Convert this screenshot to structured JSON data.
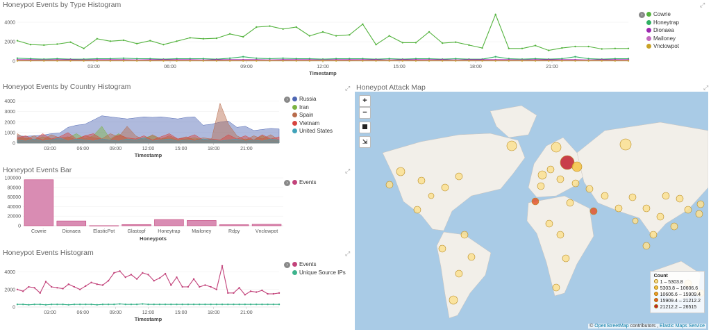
{
  "panels": {
    "type_hist": {
      "title": "Honeypot Events by Type Histogram"
    },
    "country_hist": {
      "title": "Honeypot Events by Country Histogram"
    },
    "bar": {
      "title": "Honeypot Events Bar"
    },
    "events_hist": {
      "title": "Honeypot Events Histogram"
    },
    "map": {
      "title": "Honeypot Attack Map"
    }
  },
  "colors": {
    "cowrie": "#54b33e",
    "honeytrap": "#2fb063",
    "dionaea": "#9c27b0",
    "mailoney": "#c36bbf",
    "vnclowpot": "#c9a227",
    "russia": "#4e66b3",
    "iran": "#7cb342",
    "spain": "#b86b4b",
    "vietnam": "#d7443f",
    "us": "#3fa2b9",
    "events": "#c2427a",
    "unique_ips": "#3db38c",
    "bar_fill": "#d98cb3",
    "bar_stroke": "#c2427a"
  },
  "time_ticks": [
    "03:00",
    "06:00",
    "09:00",
    "12:00",
    "15:00",
    "18:00",
    "21:00"
  ],
  "chart_data": [
    {
      "type": "line",
      "title": "Honeypot Events by Type Histogram",
      "xlabel": "Timestamp",
      "ylim": [
        0,
        5000
      ],
      "yticks": [
        "4000",
        "2000",
        "0"
      ],
      "series": [
        {
          "name": "Cowrie",
          "color": "#54b33e",
          "values": [
            2100,
            1700,
            1650,
            1750,
            1950,
            1300,
            2300,
            2050,
            2150,
            1800,
            2100,
            1700,
            2050,
            2400,
            2300,
            2350,
            2800,
            2500,
            3500,
            3600,
            3300,
            3500,
            2600,
            3000,
            2600,
            2700,
            3800,
            1700,
            2600,
            1900,
            1900,
            3000,
            1850,
            1950,
            1650,
            1350,
            4800,
            1300,
            1300,
            1600,
            1100,
            1350,
            1500,
            1500,
            1250,
            1300,
            1300
          ]
        },
        {
          "name": "Honeytrap",
          "color": "#2fb063",
          "values": [
            300,
            250,
            200,
            250,
            200,
            200,
            250,
            250,
            300,
            250,
            250,
            200,
            250,
            250,
            250,
            200,
            300,
            450,
            300,
            250,
            300,
            250,
            250,
            200,
            250,
            250,
            250,
            200,
            250,
            200,
            250,
            250,
            200,
            250,
            200,
            200,
            450,
            250,
            200,
            250,
            200,
            250,
            450,
            250,
            200,
            250,
            250
          ]
        },
        {
          "name": "Dionaea",
          "color": "#9c27b0",
          "values": [
            150,
            150,
            120,
            150,
            150,
            120,
            150,
            150,
            150,
            120,
            150,
            150,
            150,
            150,
            120,
            150,
            150,
            150,
            150,
            120,
            150,
            150,
            150,
            120,
            150,
            150,
            150,
            150,
            120,
            150,
            150,
            150,
            150,
            120,
            150,
            150,
            150,
            150,
            120,
            150,
            150,
            150,
            150,
            120,
            150,
            150,
            150
          ]
        },
        {
          "name": "Mailoney",
          "color": "#c36bbf",
          "values": [
            100,
            80,
            90,
            100,
            90,
            80,
            100,
            90,
            100,
            90,
            80,
            100,
            90,
            100,
            90,
            80,
            100,
            90,
            100,
            90,
            80,
            100,
            90,
            100,
            90,
            80,
            100,
            90,
            100,
            90,
            80,
            100,
            90,
            100,
            90,
            80,
            100,
            90,
            100,
            90,
            80,
            100,
            90,
            100,
            90,
            80,
            100
          ]
        },
        {
          "name": "Vnclowpot",
          "color": "#c9a227",
          "values": [
            30,
            30,
            30,
            30,
            30,
            30,
            30,
            30,
            30,
            30,
            30,
            30,
            30,
            30,
            30,
            30,
            30,
            30,
            30,
            30,
            30,
            30,
            30,
            30,
            30,
            30,
            30,
            30,
            30,
            30,
            30,
            30,
            30,
            30,
            30,
            30,
            30,
            30,
            30,
            30,
            30,
            30,
            30,
            30,
            30,
            30,
            30
          ]
        }
      ]
    },
    {
      "type": "area",
      "title": "Honeypot Events by Country Histogram",
      "xlabel": "Timestamp",
      "ylim": [
        0,
        4500
      ],
      "yticks": [
        "4000",
        "3000",
        "2000",
        "1000",
        "0"
      ],
      "series": [
        {
          "name": "Russia",
          "color": "#4e66b3",
          "values": [
            700,
            650,
            700,
            750,
            900,
            950,
            1500,
            1700,
            1800,
            2200,
            2600,
            2500,
            2400,
            2300,
            2400,
            2500,
            2450,
            2500,
            2400,
            2300,
            2450,
            2500,
            1700,
            1800,
            2000,
            2100,
            1500,
            1600,
            1200,
            1300,
            1400,
            1350
          ]
        },
        {
          "name": "Iran",
          "color": "#7cb342",
          "values": [
            400,
            500,
            300,
            600,
            400,
            300,
            500,
            900,
            400,
            700,
            1600,
            400,
            900,
            400,
            300,
            500,
            700,
            400,
            500,
            300,
            400,
            500,
            300,
            300,
            200,
            300,
            200,
            400,
            300,
            700,
            300,
            200
          ]
        },
        {
          "name": "Spain",
          "color": "#b86b4b",
          "values": [
            900,
            400,
            700,
            300,
            800,
            500,
            600,
            300,
            700,
            500,
            400,
            900,
            600,
            1600,
            700,
            300,
            800,
            400,
            700,
            400,
            600,
            300,
            500,
            400,
            3800,
            1800,
            700,
            300,
            700,
            400,
            800,
            300
          ]
        },
        {
          "name": "Vietnam",
          "color": "#d7443f",
          "values": [
            500,
            700,
            300,
            900,
            400,
            600,
            1000,
            400,
            700,
            900,
            400,
            300,
            800,
            500,
            400,
            700,
            300,
            600,
            900,
            400,
            500,
            800,
            300,
            400,
            300,
            800,
            400,
            700,
            300,
            800,
            400,
            600
          ]
        },
        {
          "name": "United States",
          "color": "#3fa2b9",
          "values": [
            300,
            200,
            400,
            200,
            300,
            500,
            200,
            400,
            300,
            200,
            400,
            300,
            200,
            400,
            300,
            500,
            200,
            300,
            400,
            200,
            300,
            200,
            400,
            300,
            200,
            300,
            400,
            200,
            300,
            200,
            400,
            300
          ]
        }
      ]
    },
    {
      "type": "bar",
      "title": "Honeypot Events Bar",
      "xlabel": "Honeypots",
      "ylim": [
        0,
        100000
      ],
      "yticks": [
        "100000",
        "80000",
        "60000",
        "40000",
        "20000",
        "0"
      ],
      "categories": [
        "Cowrie",
        "Dionaea",
        "ElasticPot",
        "Glastopf",
        "Honeytrap",
        "Mailoney",
        "Rdpy",
        "Vnclowpot"
      ],
      "series": [
        {
          "name": "Events",
          "values": [
            96000,
            10000,
            200,
            2500,
            13000,
            11000,
            2200,
            3000
          ]
        }
      ]
    },
    {
      "type": "line",
      "title": "Honeypot Events Histogram",
      "xlabel": "Timestamp",
      "ylim": [
        0,
        5000
      ],
      "yticks": [
        "4000",
        "2000",
        "0"
      ],
      "series": [
        {
          "name": "Events",
          "color": "#c2427a",
          "values": [
            2000,
            1800,
            2300,
            2200,
            1600,
            2900,
            2300,
            2200,
            2100,
            2600,
            2300,
            2000,
            2400,
            2800,
            2600,
            2500,
            3000,
            3900,
            4100,
            3400,
            3700,
            3200,
            3900,
            3700,
            3000,
            3300,
            3800,
            2500,
            3400,
            2300,
            2300,
            3200,
            2300,
            2500,
            2300,
            2000,
            4700,
            1600,
            1600,
            2200,
            1400,
            1800,
            1700,
            1900,
            1500,
            1500,
            1600
          ]
        },
        {
          "name": "Unique Source IPs",
          "color": "#3db38c",
          "values": [
            300,
            300,
            250,
            300,
            300,
            250,
            300,
            300,
            300,
            250,
            300,
            300,
            300,
            300,
            250,
            300,
            300,
            300,
            350,
            300,
            300,
            300,
            350,
            300,
            300,
            300,
            300,
            300,
            300,
            300,
            300,
            300,
            300,
            300,
            300,
            300,
            300,
            300,
            300,
            300,
            300,
            300,
            300,
            300,
            300,
            300,
            300
          ]
        }
      ]
    }
  ],
  "map": {
    "zoom_in": "+",
    "zoom_out": "−",
    "legend_title": "Count",
    "legend_items": [
      {
        "label": "1 – 5303.8",
        "color": "#fbe192"
      },
      {
        "label": "5303.8 – 10606.6",
        "color": "#f6c244"
      },
      {
        "label": "10606.6 – 15909.4",
        "color": "#f09a2c"
      },
      {
        "label": "15909.4 – 21212.2",
        "color": "#e5562b"
      },
      {
        "label": "21212.2 – 26515",
        "color": "#c2202e"
      }
    ],
    "attribution": {
      "prefix": "© ",
      "osm": "OpenStreetMap",
      "mid": " contributors , ",
      "ems": "Elastic Maps Service"
    }
  }
}
